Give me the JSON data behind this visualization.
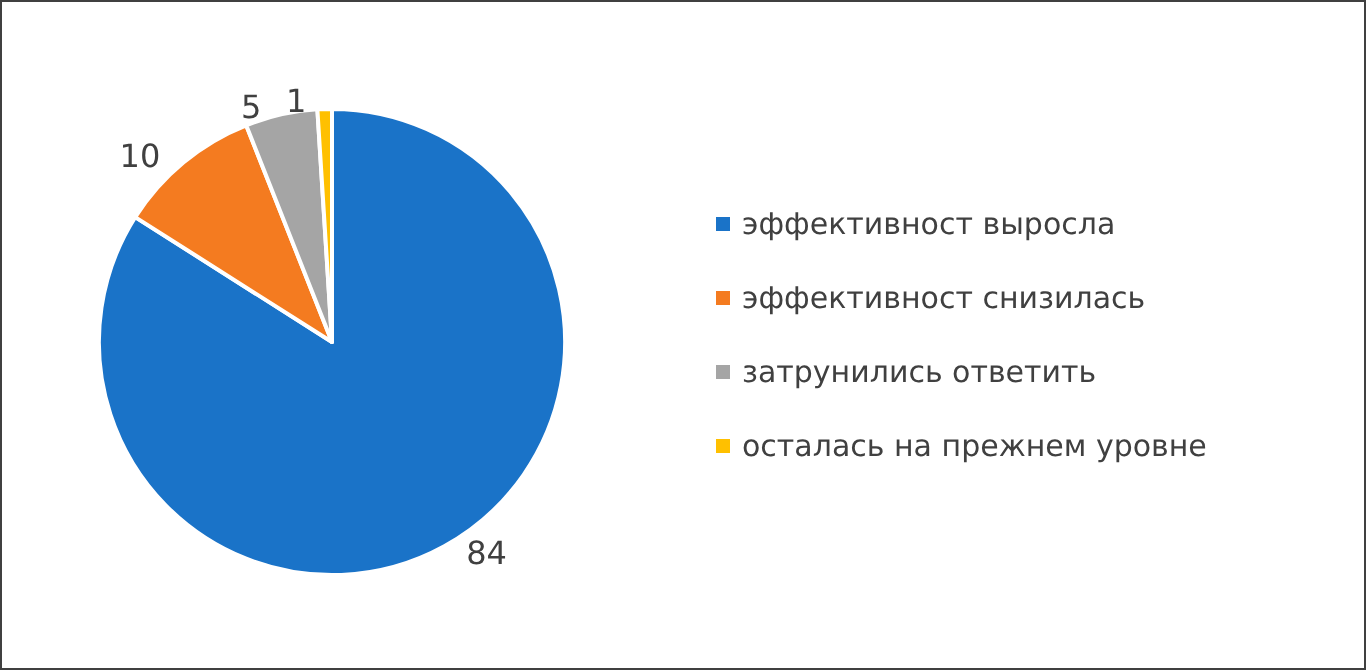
{
  "chart_data": {
    "type": "pie",
    "categories": [
      "эффективност выросла",
      "эффективност снизилась",
      "затрунились ответить",
      "осталась на прежнем уровне"
    ],
    "values": [
      84,
      10,
      5,
      1
    ],
    "colors": [
      "#1a73c8",
      "#f47b20",
      "#a5a5a5",
      "#ffc000"
    ],
    "data_labels": true,
    "legend": "right"
  }
}
